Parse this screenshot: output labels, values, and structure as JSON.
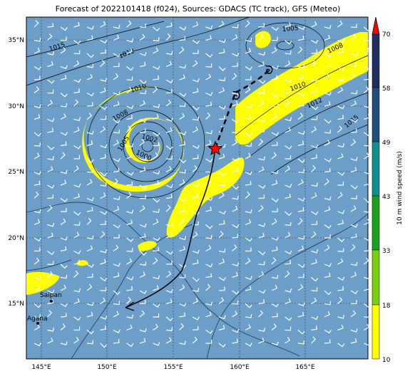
{
  "title": "Forecast of 2022101418 (f024), Sources: GDACS (TC track), GFS (Meteo)",
  "map": {
    "lon_ticks": [
      "145°E",
      "150°E",
      "155°E",
      "160°E",
      "165°E"
    ],
    "lat_ticks": [
      "35°N",
      "30°N",
      "25°N",
      "20°N",
      "15°N"
    ],
    "isobar_labels": [
      "1015",
      "1012",
      "1010",
      "1008",
      "1005",
      "1002",
      "1000",
      "1005",
      "1008",
      "1010",
      "1012",
      "1015"
    ],
    "cities": [
      {
        "name": "Saipan"
      },
      {
        "name": "Agana"
      }
    ]
  },
  "colorbar": {
    "title": "10 m wind speed (m/s)",
    "ticks": [
      "70",
      "58",
      "49",
      "43",
      "33",
      "18",
      "10"
    ],
    "colors": [
      "#ff0000",
      "#1f2d63",
      "#1f4f7a",
      "#0e8e8e",
      "#16a01b",
      "#7ad00e",
      "#ffff00"
    ]
  },
  "colors": {
    "ocean": "#6c9ec8",
    "windband": "#ffff00",
    "track_past": "#000000"
  }
}
